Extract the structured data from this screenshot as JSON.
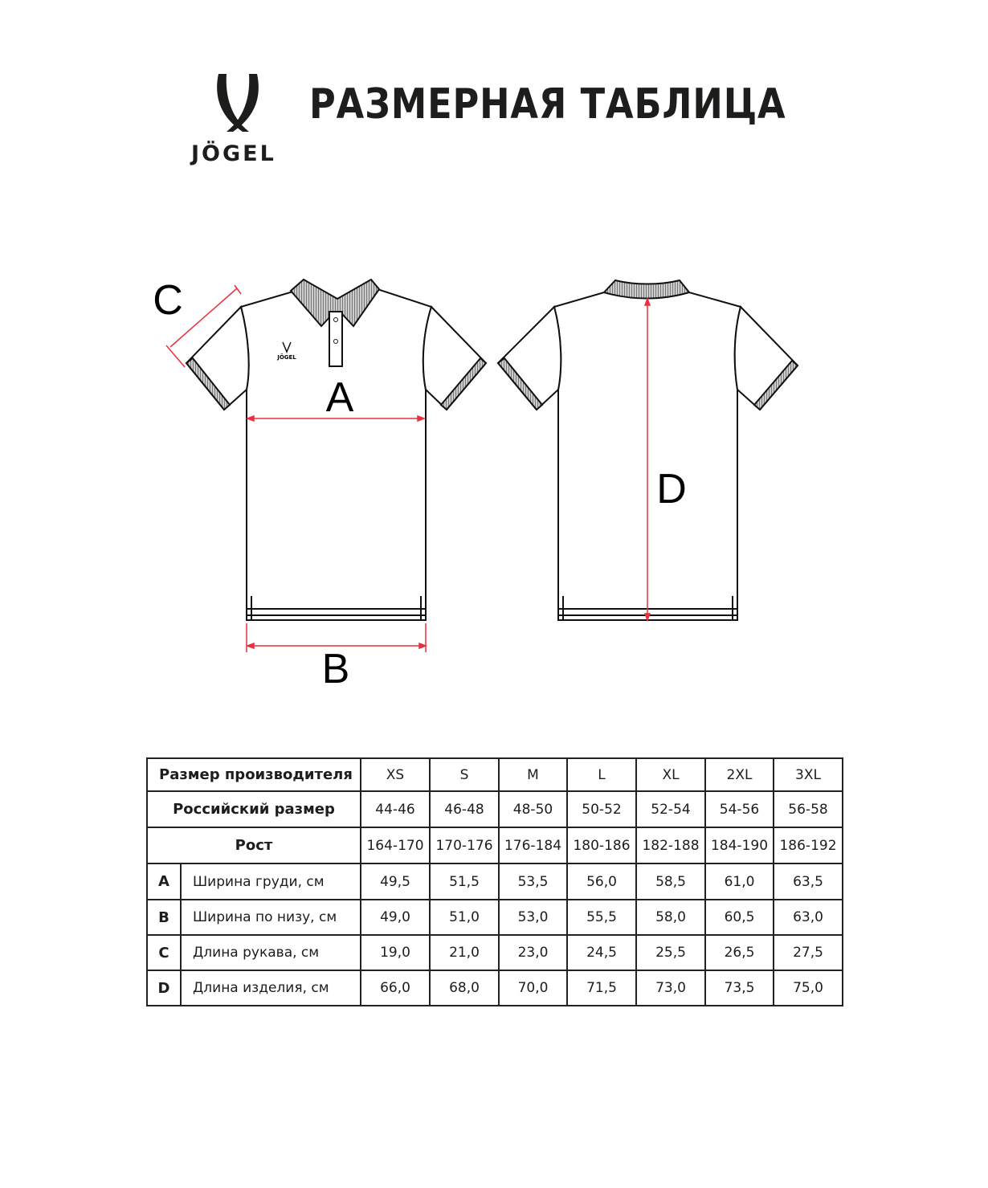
{
  "header": {
    "title": "РАЗМЕРНАЯ ТАБЛИЦА",
    "brand": "JÖGEL"
  },
  "diagram": {
    "labels": {
      "A": "A",
      "B": "B",
      "C": "C",
      "D": "D"
    },
    "accent_color": "#e8313d",
    "chest_logo_text": "JÖGEL"
  },
  "table": {
    "header_label": "Размер производителя",
    "sizes": [
      "XS",
      "S",
      "M",
      "L",
      "XL",
      "2XL",
      "3XL"
    ],
    "russian_label": "Российский размер",
    "russian_sizes": [
      "44-46",
      "46-48",
      "48-50",
      "50-52",
      "52-54",
      "54-56",
      "56-58"
    ],
    "height_label": "Рост",
    "heights": [
      "164-170",
      "170-176",
      "176-184",
      "180-186",
      "182-188",
      "184-190",
      "186-192"
    ],
    "measurements": [
      {
        "code": "A",
        "name": "Ширина груди, см",
        "values": [
          "49,5",
          "51,5",
          "53,5",
          "56,0",
          "58,5",
          "61,0",
          "63,5"
        ]
      },
      {
        "code": "B",
        "name": "Ширина по низу, см",
        "values": [
          "49,0",
          "51,0",
          "53,0",
          "55,5",
          "58,0",
          "60,5",
          "63,0"
        ]
      },
      {
        "code": "C",
        "name": "Длина рукава, см",
        "values": [
          "19,0",
          "21,0",
          "23,0",
          "24,5",
          "25,5",
          "26,5",
          "27,5"
        ]
      },
      {
        "code": "D",
        "name": "Длина изделия, см",
        "values": [
          "66,0",
          "68,0",
          "70,0",
          "71,5",
          "73,0",
          "73,5",
          "75,0"
        ]
      }
    ]
  }
}
